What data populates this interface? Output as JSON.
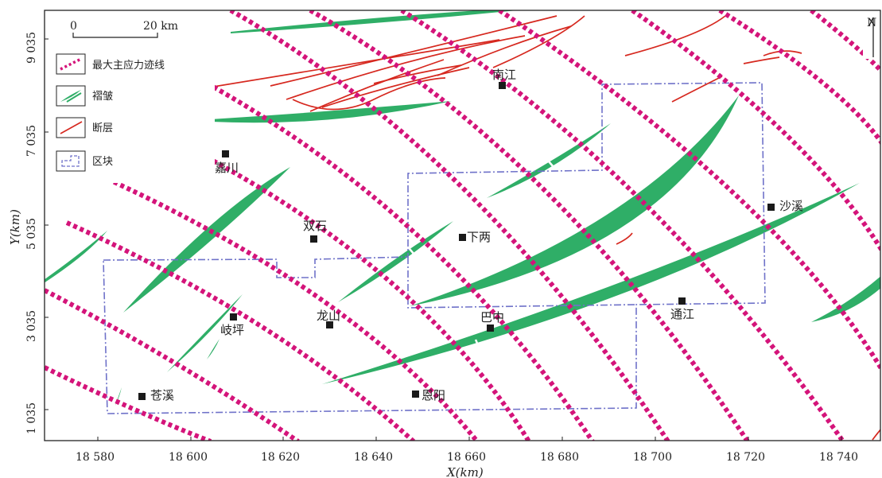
{
  "map": {
    "x_axis": {
      "title": "X(km)",
      "ticks": [
        "18 580",
        "18 600",
        "18 620",
        "18 640",
        "18 660",
        "18 680",
        "18 700",
        "18 720",
        "18 740"
      ]
    },
    "y_axis": {
      "title": "Y(km)",
      "ticks": [
        "9 035",
        "7 035",
        "5 035",
        "3 035",
        "1 035"
      ]
    },
    "scale_bar": {
      "start": "0",
      "end": "20 km"
    },
    "north_label": "N",
    "legend": [
      {
        "label": "最大主应力迹线",
        "icon": "dotted-magenta-line-icon"
      },
      {
        "label": "褶皱",
        "icon": "fold-icon"
      },
      {
        "label": "断层",
        "icon": "fault-line-icon"
      },
      {
        "label": "区块",
        "icon": "block-boundary-icon"
      }
    ],
    "towns": [
      "南江",
      "嘉川",
      "双石",
      "下两",
      "沙溪",
      "岐坪",
      "龙山",
      "巴中",
      "通江",
      "苍溪",
      "恩阳"
    ],
    "colors": {
      "stress_trajectory": "#d4147a",
      "fold": "#2fae67",
      "fault": "#d6281f",
      "block_boundary": "#6f72c9",
      "town_marker": "#1a1a1a"
    }
  }
}
